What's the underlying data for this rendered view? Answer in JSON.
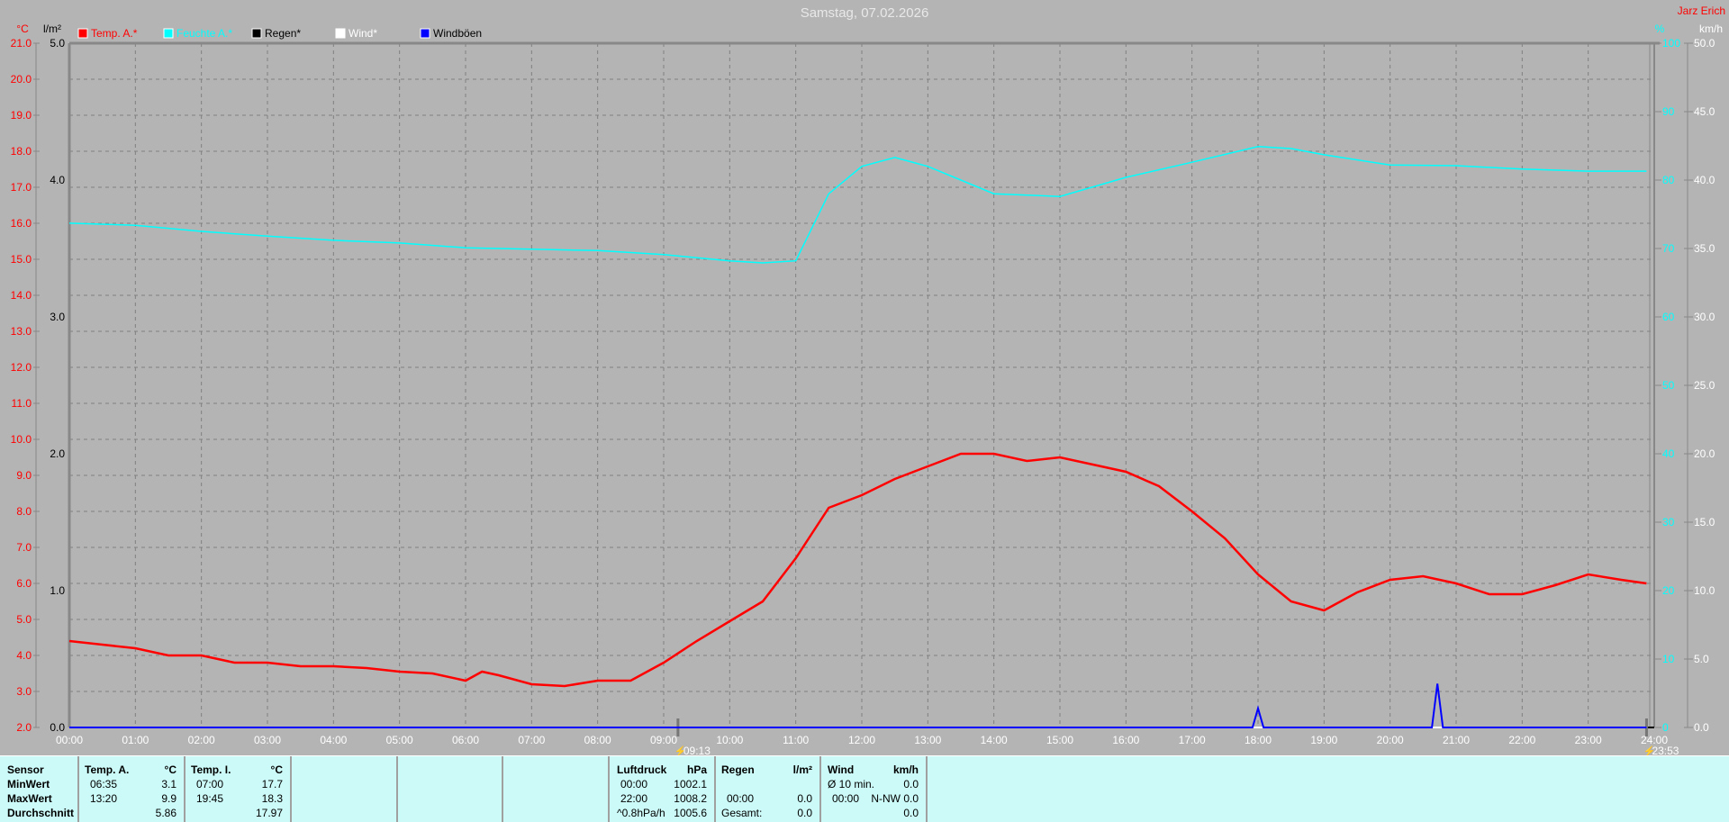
{
  "header": {
    "title": "Samstag, 07.02.2026",
    "station": "Jarz Erich"
  },
  "colors": {
    "background": "#b4b4b4",
    "temp": "#ff0000",
    "humidity": "#00ffff",
    "rain": "#000000",
    "wind": "#ffffff",
    "gusts": "#0000ff",
    "panel": "#ccfaf8"
  },
  "chart_data": {
    "type": "line",
    "title": "Samstag, 07.02.2026",
    "x_ticks": [
      "00:00",
      "01:00",
      "02:00",
      "03:00",
      "04:00",
      "05:00",
      "06:00",
      "07:00",
      "08:00",
      "09:00",
      "10:00",
      "11:00",
      "12:00",
      "13:00",
      "14:00",
      "15:00",
      "16:00",
      "17:00",
      "18:00",
      "19:00",
      "20:00",
      "21:00",
      "22:00",
      "23:00",
      "24:00"
    ],
    "xlim": [
      "00:00",
      "24:00"
    ],
    "grid": true,
    "legend_placement": "top-left",
    "axes": {
      "temp": {
        "unit": "°C",
        "range": [
          2.0,
          21.0
        ],
        "ticks": [
          2.0,
          3.0,
          4.0,
          5.0,
          6.0,
          7.0,
          8.0,
          9.0,
          10.0,
          11.0,
          12.0,
          13.0,
          14.0,
          15.0,
          16.0,
          17.0,
          18.0,
          19.0,
          20.0,
          21.0
        ]
      },
      "rain": {
        "unit": "l/m²",
        "range": [
          0.0,
          5.0
        ],
        "ticks": [
          0.0,
          1.0,
          2.0,
          3.0,
          4.0,
          5.0
        ]
      },
      "humidity": {
        "unit": "%",
        "range": [
          0,
          100
        ],
        "ticks": [
          0,
          10,
          20,
          30,
          40,
          50,
          60,
          70,
          80,
          90,
          100
        ]
      },
      "wind": {
        "unit": "km/h",
        "range": [
          0.0,
          50.0
        ],
        "ticks": [
          0.0,
          5.0,
          10.0,
          15.0,
          20.0,
          25.0,
          30.0,
          35.0,
          40.0,
          45.0,
          50.0
        ]
      }
    },
    "markers": [
      {
        "time": "09:13",
        "label": "09:13",
        "kind": "sunrise"
      },
      {
        "time": "23:53",
        "label": "23:53",
        "kind": "now"
      }
    ],
    "series": [
      {
        "name": "Temp. A.*",
        "axis": "temp",
        "color": "#ff0000",
        "x": [
          "00:00",
          "00:30",
          "01:00",
          "01:30",
          "02:00",
          "02:30",
          "03:00",
          "03:30",
          "04:00",
          "04:30",
          "05:00",
          "05:30",
          "06:00",
          "06:15",
          "06:30",
          "07:00",
          "07:30",
          "08:00",
          "08:30",
          "09:00",
          "09:30",
          "10:00",
          "10:30",
          "11:00",
          "11:30",
          "12:00",
          "12:30",
          "13:00",
          "13:30",
          "14:00",
          "14:30",
          "15:00",
          "15:30",
          "16:00",
          "16:30",
          "17:00",
          "17:30",
          "18:00",
          "18:30",
          "19:00",
          "19:30",
          "20:00",
          "20:30",
          "21:00",
          "21:30",
          "22:00",
          "22:30",
          "23:00",
          "23:30",
          "23:53"
        ],
        "values": [
          4.4,
          4.3,
          4.2,
          4.0,
          4.0,
          3.8,
          3.8,
          3.7,
          3.7,
          3.65,
          3.55,
          3.5,
          3.3,
          3.55,
          3.45,
          3.2,
          3.15,
          3.3,
          3.3,
          3.8,
          4.4,
          4.95,
          5.5,
          6.7,
          8.1,
          8.45,
          8.9,
          9.25,
          9.6,
          9.6,
          9.4,
          9.5,
          9.3,
          9.1,
          8.7,
          8.0,
          7.25,
          6.25,
          5.5,
          5.25,
          5.75,
          6.1,
          6.2,
          6.0,
          5.7,
          5.7,
          5.95,
          6.25,
          6.1,
          6.0
        ]
      },
      {
        "name": "Feuchte A.*",
        "axis": "humidity",
        "color": "#00ffff",
        "x": [
          "00:00",
          "01:00",
          "02:00",
          "03:00",
          "04:00",
          "05:00",
          "06:00",
          "07:00",
          "08:00",
          "09:00",
          "10:00",
          "10:30",
          "11:00",
          "11:30",
          "12:00",
          "12:30",
          "13:00",
          "13:30",
          "14:00",
          "15:00",
          "15:30",
          "16:00",
          "17:00",
          "18:00",
          "18:30",
          "19:00",
          "20:00",
          "21:00",
          "22:00",
          "23:00",
          "23:53"
        ],
        "values": [
          73.7,
          73.4,
          72.5,
          71.8,
          71.2,
          70.8,
          70.1,
          69.9,
          69.7,
          69.1,
          68.2,
          67.9,
          68.2,
          78,
          82,
          83.3,
          82,
          80,
          78,
          77.6,
          79,
          80.4,
          82.6,
          84.9,
          84.6,
          83.7,
          82.2,
          82.1,
          81.6,
          81.3,
          81.3
        ]
      },
      {
        "name": "Regen*",
        "axis": "rain",
        "color": "#000000",
        "x": [
          "00:00",
          "23:53"
        ],
        "values": [
          0.0,
          0.0
        ]
      },
      {
        "name": "Wind*",
        "axis": "wind",
        "color": "#ffffff",
        "x": [
          "00:00",
          "23:53"
        ],
        "values": [
          0.0,
          0.0
        ]
      },
      {
        "name": "Windböen",
        "axis": "wind",
        "color": "#0000ff",
        "x": [
          "00:00",
          "17:55",
          "18:00",
          "18:05",
          "20:38",
          "20:43",
          "20:48",
          "23:53"
        ],
        "values": [
          0,
          0,
          1.4,
          0,
          0,
          3.2,
          0,
          0
        ]
      }
    ]
  },
  "stats": {
    "sensor_label": "Sensor",
    "min_label": "MinWert",
    "max_label": "MaxWert",
    "avg_label": "Durchschnitt",
    "temp_a": {
      "header": "Temp. A.",
      "unit": "°C",
      "min_time": "06:35",
      "min": "3.1",
      "max_time": "13:20",
      "max": "9.9",
      "avg": "5.86"
    },
    "temp_i": {
      "header": "Temp. I.",
      "unit": "°C",
      "min_time": "07:00",
      "min": "17.7",
      "max_time": "19:45",
      "max": "18.3",
      "avg": "17.97"
    },
    "pressure": {
      "header": "Luftdruck",
      "unit": "hPa",
      "r1_label": "00:00",
      "r1": "1002.1",
      "r2_label": "22:00",
      "r2": "1008.2",
      "r3_label": "^0.8hPa/h",
      "r3": "1005.6"
    },
    "rain": {
      "header": "Regen",
      "unit": "l/m²",
      "r2_label": "00:00",
      "r2": "0.0",
      "r3_label": "Gesamt:",
      "r3": "0.0"
    },
    "wind": {
      "header": "Wind",
      "unit": "km/h",
      "r1_label": "Ø 10 min.",
      "r1": "0.0",
      "r2_label": "00:00",
      "r2": "N-NW 0.0",
      "r3": "0.0"
    }
  }
}
